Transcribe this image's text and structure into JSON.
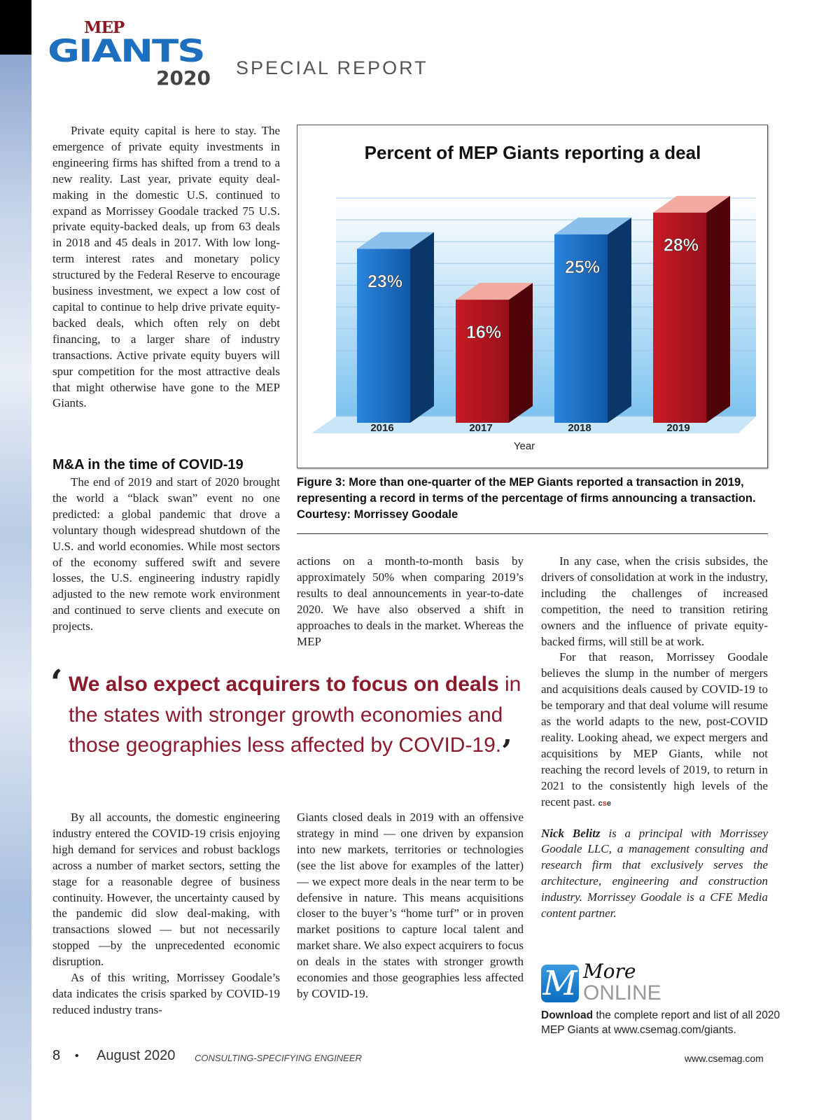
{
  "header": {
    "logo_mep": "MEP",
    "logo_giants": "GIANTS",
    "logo_year": "2020",
    "section": "SPECIAL REPORT"
  },
  "article": {
    "p1": "Private equity capital is here to stay. The emergence of private equity investments in engineering firms has shifted from a trend to a new reality. Last year, private equity deal-making in the domestic U.S. continued to expand as Morrissey Goodale tracked 75 U.S. private equity-backed deals, up from 63 deals in 2018 and 45 deals in 2017. With low long-term interest rates and monetary policy structured by the Federal Reserve to encourage business investment, we expect a low cost of capital to continue to help drive private equity-backed deals, which often rely on debt financing, to a larger share of industry transactions. Active private equity buyers will spur competition for the most attractive deals that might otherwise have gone to the MEP Giants.",
    "heading": "M&A in the time of COVID-19",
    "p2": "The end of 2019 and start of 2020 brought the world a “black swan” event no one predicted: a global pandemic that drove a voluntary though widespread shutdown of the U.S. and world economies. While most sectors of the economy suffered swift and severe losses, the U.S. engineering industry rapidly adjusted to the new remote work environment and continued to serve clients and execute on projects.",
    "p3": "actions on a month-to-month basis by approximately 50% when comparing 2019’s results to deal announcements in year-to-date 2020. We have also observed a shift in approaches to deals in the market. Whereas the MEP",
    "p4": "By all accounts, the domestic engineering industry entered the COVID-19 crisis enjoying high demand for services and robust backlogs across a number of market sectors, setting the stage for a reasonable degree of business continuity. However, the uncertainty caused by the pandemic did slow deal-making, with transactions slowed — but not necessarily stopped —by the unprecedented economic disruption.",
    "p5": "As of this writing, Morrissey Goodale’s data indicates the crisis sparked by COVID-19 reduced industry trans-",
    "p6": "Giants closed deals in 2019 with an offensive strategy in mind — one driven by expansion into new markets, territories or technologies (see the list above for examples of the latter) — we expect more deals in the near term to be defensive in nature. This means acquisitions closer to the buyer’s “home turf” or in proven market positions to capture local talent and market share. We also expect acquirers to focus on deals in the states with stronger growth economies and those geographies less affected by COVID-19.",
    "p7": "In any case, when the crisis subsides, the drivers of consolidation at work in the industry, including the challenges of increased competition, the need to transition retiring owners and the influence of private equity-backed firms, will still be at work.",
    "p8": "For that reason, Morrissey Goodale believes the slump in the number of mergers and acquisitions deals caused by COVID-19 to be temporary and that deal volume will resume as the world adapts to the new, post-COVID reality. Looking ahead, we expect mergers and acquisitions by MEP Giants, while not reaching the record levels of 2019, to return in 2021 to the consistently high levels of the recent past.",
    "end_mark_c": "c",
    "end_mark_s": "s",
    "end_mark_e": "e",
    "bio_name": "Nick Belitz",
    "bio_text": " is a principal with Morrissey Goodale LLC, a management consulting and research firm that exclusively serves the architecture, engineering and construction industry. Morrissey Goodale is a CFE Media content partner."
  },
  "pullquote": {
    "bold": "We also expect acquirers to focus on deals",
    "rest": " in the states with stronger growth economies and those geographies less affected by COVID-19."
  },
  "figure": {
    "caption": "Figure 3: More than one-quarter of the MEP Giants reported a transaction in 2019, representing a record in terms of the percentage of firms announcing a transaction. Courtesy: Morrissey Goodale"
  },
  "chart_data": {
    "type": "bar",
    "title": "Percent of MEP Giants reporting a deal",
    "xlabel": "Year",
    "ylabel": "",
    "categories": [
      "2016",
      "2017",
      "2018",
      "2019"
    ],
    "values": [
      23,
      16,
      25,
      28
    ],
    "labels": [
      "23%",
      "16%",
      "25%",
      "28%"
    ],
    "colors": [
      "#1a6cc4",
      "#b3121d",
      "#1a6cc4",
      "#b3121d"
    ],
    "ylim": [
      0,
      30
    ],
    "grid": true
  },
  "more_online": {
    "icon_letter": "M",
    "more": "More",
    "online": "ONLINE",
    "download_bold": "Download",
    "download_text": " the complete report and list of all 2020 MEP Giants at www.csemag.com/giants."
  },
  "footer": {
    "page": "8",
    "bullet": "•",
    "date": "August 2020",
    "magazine": "CONSULTING-SPECIFYING ENGINEER",
    "url": "www.csemag.com"
  }
}
